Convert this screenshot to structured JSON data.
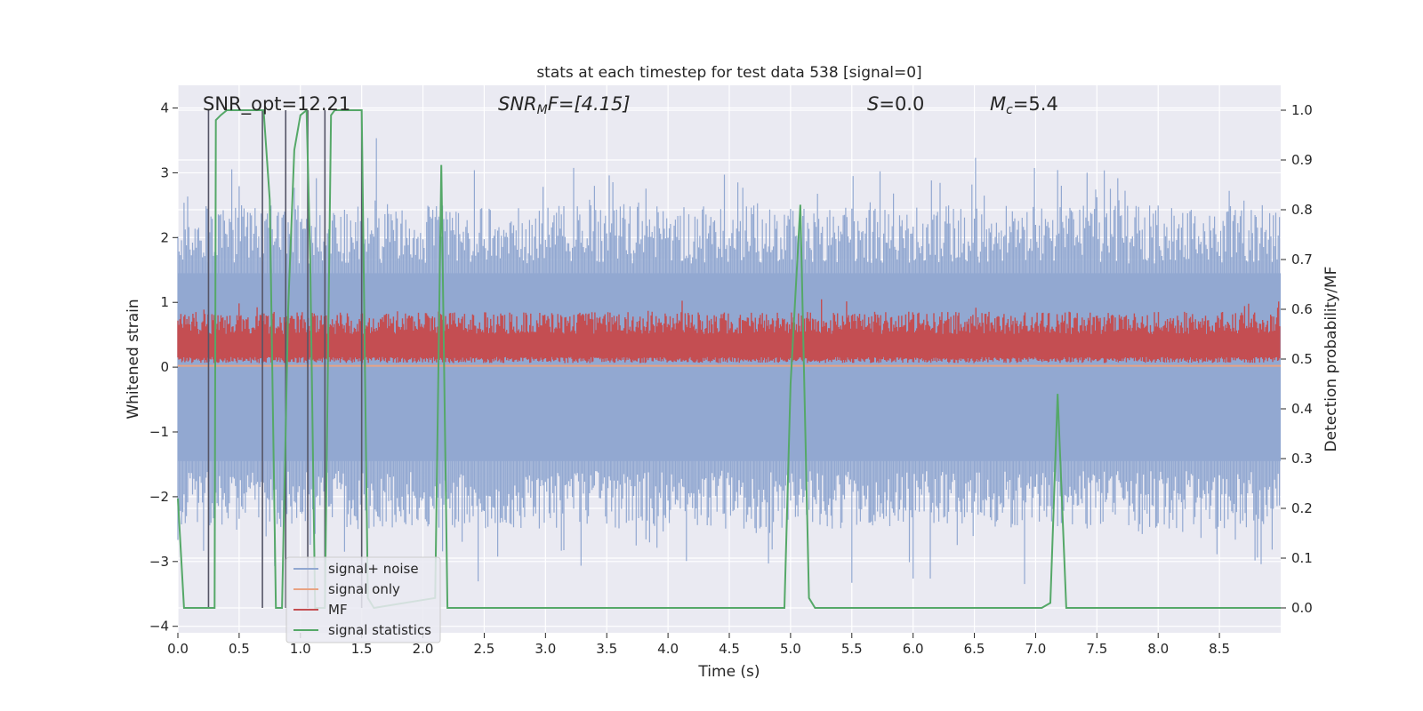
{
  "chart_data": {
    "type": "line",
    "title": "stats at each timestep for test data 538 [signal=0]",
    "xlabel": "Time (s)",
    "ylabel": "Whitened strain",
    "y2label": "Detection probability/MF",
    "xlim": [
      0,
      9
    ],
    "ylim": [
      -4.1,
      4.35
    ],
    "y2lim": [
      -0.05,
      1.05
    ],
    "xticks": [
      "0.0",
      "0.5",
      "1.0",
      "1.5",
      "2.0",
      "2.5",
      "3.0",
      "3.5",
      "4.0",
      "4.5",
      "5.0",
      "5.5",
      "6.0",
      "6.5",
      "7.0",
      "7.5",
      "8.0",
      "8.5"
    ],
    "yticks": [
      "−4",
      "−3",
      "−2",
      "−1",
      "0",
      "1",
      "2",
      "3",
      "4"
    ],
    "y2ticks": [
      "0.0",
      "0.1",
      "0.2",
      "0.3",
      "0.4",
      "0.5",
      "0.6",
      "0.7",
      "0.8",
      "0.9",
      "1.0"
    ],
    "grid": true,
    "legend_position": "lower-left",
    "annotations": {
      "snr_opt": "SNR_opt=12.21",
      "snr_mf_sym": "SNR",
      "snr_mf_sub": "M",
      "snr_mf_rest": "F=[4.15]",
      "s_sym": "S",
      "s_rest": "=0.0",
      "mc_sym": "M",
      "mc_sub": "c",
      "mc_rest": "=5.4"
    },
    "series": [
      {
        "name": "signal+ noise",
        "color": "#92a8d1",
        "axis": "left",
        "description": "whitened noise band, roughly between -2.5 and 2.5 with spikes to about ±3.6",
        "envelope": [
          -2.5,
          2.5
        ]
      },
      {
        "name": "signal only",
        "color": "#e8a383",
        "axis": "left",
        "values_constant": 0.02
      },
      {
        "name": "MF",
        "color": "#c44e52",
        "axis": "right",
        "band": [
          0.5,
          0.58
        ]
      },
      {
        "name": "signal statistics",
        "color": "#55a868",
        "axis": "right",
        "x": [
          0.0,
          0.05,
          0.25,
          0.3,
          0.31,
          0.35,
          0.4,
          0.7,
          0.75,
          0.8,
          0.85,
          0.9,
          0.95,
          1.0,
          1.05,
          1.08,
          1.12,
          1.2,
          1.25,
          1.28,
          1.5,
          1.55,
          1.6,
          2.1,
          2.15,
          2.2,
          2.25,
          4.95,
          5.0,
          5.08,
          5.15,
          5.2,
          7.05,
          7.12,
          7.18,
          7.25,
          9.0
        ],
        "y": [
          0.22,
          0.0,
          0.0,
          0.0,
          0.98,
          0.99,
          1.0,
          1.0,
          0.82,
          0.0,
          0.0,
          0.6,
          0.92,
          0.99,
          1.0,
          0.7,
          0.0,
          0.0,
          0.99,
          1.0,
          1.0,
          0.02,
          0.0,
          0.02,
          0.89,
          0.0,
          0.0,
          0.0,
          0.45,
          0.81,
          0.02,
          0.0,
          0.0,
          0.01,
          0.43,
          0.0,
          0.0
        ]
      }
    ],
    "vertical_markers": [
      0.25,
      0.69,
      0.88,
      1.06,
      1.2,
      1.5
    ]
  }
}
